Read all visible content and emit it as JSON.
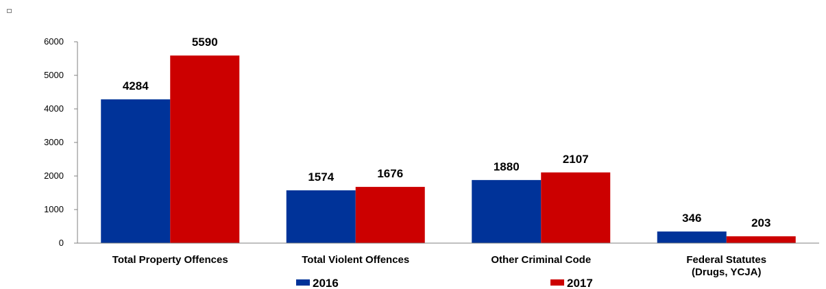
{
  "chart_data": {
    "type": "bar",
    "categories": [
      [
        "Total Property Offences"
      ],
      [
        "Total Violent Offences"
      ],
      [
        "Other Criminal Code"
      ],
      [
        "Federal Statutes",
        "(Drugs, YCJA)"
      ]
    ],
    "series": [
      {
        "name": "2016",
        "color": "#003399",
        "values": [
          4284,
          1574,
          1880,
          346
        ]
      },
      {
        "name": "2017",
        "color": "#CC0000",
        "values": [
          5590,
          1676,
          2107,
          203
        ]
      }
    ],
    "ylim": [
      0,
      6000
    ],
    "yticks": [
      0,
      1000,
      2000,
      3000,
      4000,
      5000,
      6000
    ],
    "grid": false,
    "legend_position": "bottom"
  }
}
